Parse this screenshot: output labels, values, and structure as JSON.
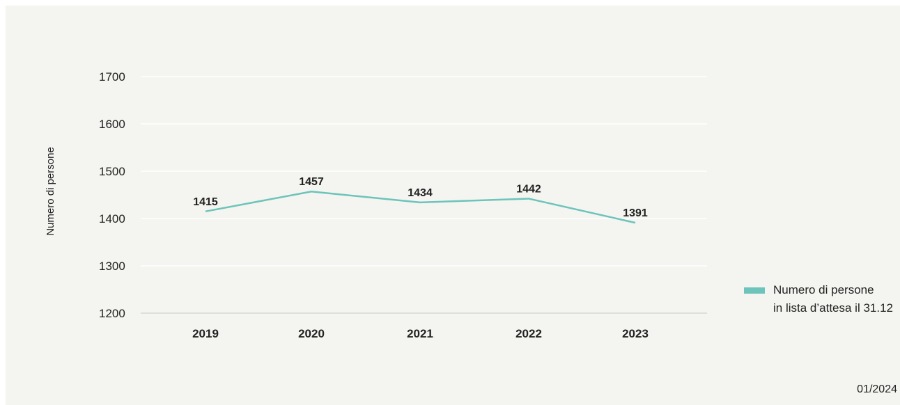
{
  "chart_data": {
    "type": "line",
    "categories": [
      "2019",
      "2020",
      "2021",
      "2022",
      "2023"
    ],
    "series": [
      {
        "name": "Numero di persone\nin lista d’attesa il 31.12",
        "values": [
          1415,
          1457,
          1434,
          1442,
          1391
        ],
        "color": "#6cc4ba"
      }
    ],
    "data_labels": [
      "1415",
      "1457",
      "1434",
      "1442",
      "1391"
    ],
    "ylabel": "Numero di persone",
    "xlabel": "",
    "ylim": [
      1200,
      1700
    ],
    "yticks": [
      1200,
      1300,
      1400,
      1500,
      1600,
      1700
    ],
    "ytick_labels": [
      "1200",
      "1300",
      "1400",
      "1500",
      "1600",
      "1700"
    ],
    "grid": true,
    "legend_position": "right",
    "footnote": "01/2024"
  },
  "colors": {
    "background": "#f4f4f0",
    "grid": "#ffffff",
    "axis": "#c8c8c4",
    "text": "#222222",
    "series": "#6cc4ba"
  }
}
